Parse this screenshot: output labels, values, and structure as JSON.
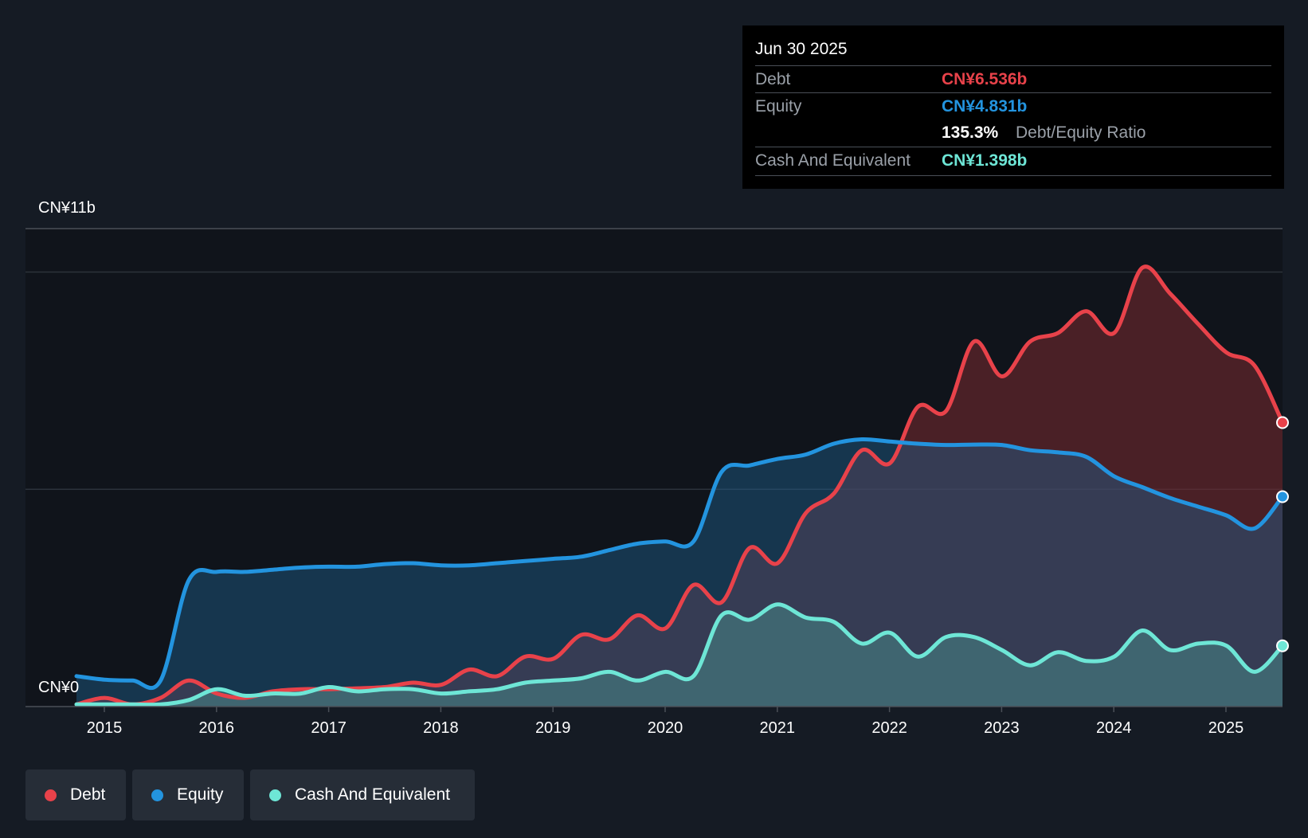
{
  "chart_data": {
    "type": "area",
    "title": "",
    "xlabel": "",
    "ylabel": "",
    "y_axis_top_label": "CN¥11b",
    "y_axis_bottom_label": "CN¥0",
    "ylim": [
      0,
      11
    ],
    "xlim": [
      2014.75,
      2025.5
    ],
    "x_ticks": [
      "2015",
      "2016",
      "2017",
      "2018",
      "2019",
      "2020",
      "2021",
      "2022",
      "2023",
      "2024",
      "2025"
    ],
    "x": [
      2014.75,
      2015.0,
      2015.25,
      2015.5,
      2015.75,
      2016.0,
      2016.25,
      2016.5,
      2016.75,
      2017.0,
      2017.25,
      2017.5,
      2017.75,
      2018.0,
      2018.25,
      2018.5,
      2018.75,
      2019.0,
      2019.25,
      2019.5,
      2019.75,
      2020.0,
      2020.25,
      2020.5,
      2020.75,
      2021.0,
      2021.25,
      2021.5,
      2021.75,
      2022.0,
      2022.25,
      2022.5,
      2022.75,
      2023.0,
      2023.25,
      2023.5,
      2023.75,
      2024.0,
      2024.25,
      2024.5,
      2024.75,
      2025.0,
      2025.25,
      2025.5
    ],
    "series": [
      {
        "name": "Debt",
        "color": "#e8424a",
        "values": [
          0.05,
          0.2,
          0.05,
          0.2,
          0.6,
          0.3,
          0.2,
          0.35,
          0.4,
          0.4,
          0.42,
          0.45,
          0.55,
          0.5,
          0.85,
          0.7,
          1.15,
          1.1,
          1.65,
          1.55,
          2.1,
          1.8,
          2.8,
          2.4,
          3.65,
          3.3,
          4.45,
          4.9,
          5.9,
          5.6,
          6.9,
          6.8,
          8.4,
          7.6,
          8.4,
          8.6,
          9.1,
          8.6,
          10.1,
          9.5,
          8.8,
          8.15,
          7.85,
          6.536
        ]
      },
      {
        "name": "Equity",
        "color": "#2394df",
        "values": [
          0.7,
          0.62,
          0.6,
          0.6,
          2.9,
          3.1,
          3.1,
          3.15,
          3.2,
          3.22,
          3.22,
          3.28,
          3.3,
          3.25,
          3.25,
          3.3,
          3.35,
          3.4,
          3.45,
          3.6,
          3.75,
          3.8,
          3.8,
          5.4,
          5.55,
          5.7,
          5.8,
          6.05,
          6.15,
          6.1,
          6.05,
          6.02,
          6.03,
          6.02,
          5.9,
          5.85,
          5.75,
          5.3,
          5.05,
          4.8,
          4.6,
          4.4,
          4.1,
          4.831
        ]
      },
      {
        "name": "Cash And Equivalent",
        "color": "#6ee6d6",
        "values": [
          0.05,
          0.05,
          0.05,
          0.05,
          0.15,
          0.4,
          0.25,
          0.3,
          0.3,
          0.45,
          0.35,
          0.4,
          0.4,
          0.3,
          0.35,
          0.4,
          0.55,
          0.6,
          0.65,
          0.8,
          0.6,
          0.8,
          0.7,
          2.1,
          2.0,
          2.35,
          2.05,
          1.95,
          1.45,
          1.7,
          1.15,
          1.6,
          1.6,
          1.3,
          0.95,
          1.25,
          1.05,
          1.15,
          1.75,
          1.3,
          1.45,
          1.4,
          0.8,
          1.398
        ]
      }
    ],
    "tooltip": {
      "date": "Jun 30 2025",
      "debt_label": "Debt",
      "debt_value": "CN¥6.536b",
      "equity_label": "Equity",
      "equity_value": "CN¥4.831b",
      "ratio_value": "135.3%",
      "ratio_label": "Debt/Equity Ratio",
      "cash_label": "Cash And Equivalent",
      "cash_value": "CN¥1.398b"
    },
    "legend": [
      "Debt",
      "Equity",
      "Cash And Equivalent"
    ]
  },
  "colors": {
    "background": "#151b24",
    "plot_background": "#10141b",
    "debt": "#e8424a",
    "equity": "#2394df",
    "cash": "#6ee6d6"
  }
}
